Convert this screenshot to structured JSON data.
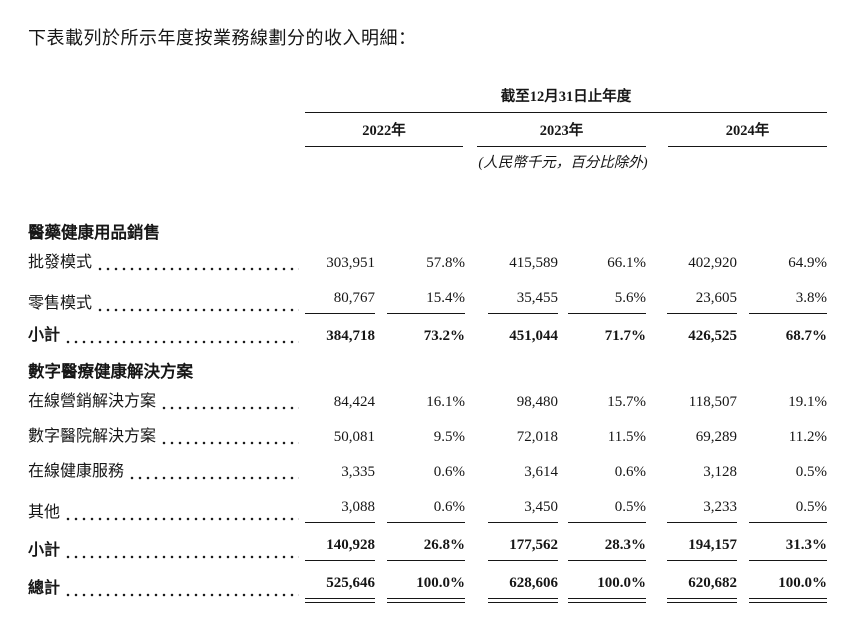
{
  "page": {
    "intro": "下表載列於所示年度按業務線劃分的收入明細："
  },
  "table": {
    "period_header": "截至12月31日止年度",
    "unit_note": "(人民幣千元，百分比除外)",
    "year_columns": [
      "2022年",
      "2023年",
      "2024年"
    ],
    "column_kinds": [
      "amount",
      "percent",
      "amount",
      "percent",
      "amount",
      "percent"
    ],
    "rows": [
      {
        "type": "section",
        "label": "醫藥健康用品銷售"
      },
      {
        "type": "item",
        "label": "批發模式",
        "values": [
          "303,951",
          "57.8%",
          "415,589",
          "66.1%",
          "402,920",
          "64.9%"
        ]
      },
      {
        "type": "item",
        "underline": "single",
        "label": "零售模式",
        "values": [
          "80,767",
          "15.4%",
          "35,455",
          "5.6%",
          "23,605",
          "3.8%"
        ]
      },
      {
        "type": "subtotal",
        "label": "小計",
        "values": [
          "384,718",
          "73.2%",
          "451,044",
          "71.7%",
          "426,525",
          "68.7%"
        ]
      },
      {
        "type": "section",
        "label": "數字醫療健康解決方案"
      },
      {
        "type": "item",
        "label": "在線營銷解決方案",
        "values": [
          "84,424",
          "16.1%",
          "98,480",
          "15.7%",
          "118,507",
          "19.1%"
        ]
      },
      {
        "type": "item",
        "label": "數字醫院解決方案",
        "values": [
          "50,081",
          "9.5%",
          "72,018",
          "11.5%",
          "69,289",
          "11.2%"
        ]
      },
      {
        "type": "item",
        "label": "在線健康服務",
        "values": [
          "3,335",
          "0.6%",
          "3,614",
          "0.6%",
          "3,128",
          "0.5%"
        ]
      },
      {
        "type": "item",
        "underline": "single",
        "label": "其他",
        "values": [
          "3,088",
          "0.6%",
          "3,450",
          "0.5%",
          "3,233",
          "0.5%"
        ]
      },
      {
        "type": "subtotal",
        "underline": "single",
        "label": "小計",
        "values": [
          "140,928",
          "26.8%",
          "177,562",
          "28.3%",
          "194,157",
          "31.3%"
        ]
      },
      {
        "type": "total",
        "underline": "double",
        "label": "總計",
        "values": [
          "525,646",
          "100.0%",
          "628,606",
          "100.0%",
          "620,682",
          "100.0%"
        ]
      }
    ]
  }
}
